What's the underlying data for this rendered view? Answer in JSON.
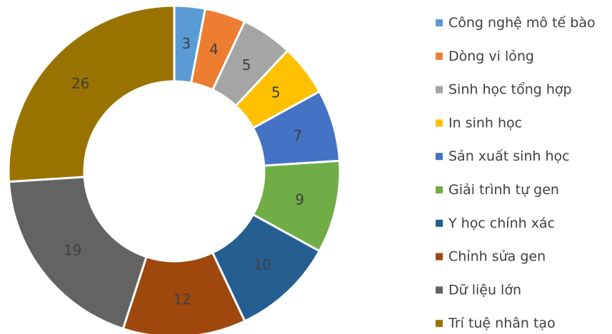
{
  "chart_data": {
    "type": "pie",
    "variant": "donut",
    "title": "",
    "legend_position": "right",
    "categories": [
      "Công nghệ mô tế bào",
      "Dòng vi lỏng",
      "Sinh học tổng hợp",
      "In sinh học",
      "Sản xuất sinh học",
      "Giải trình tự gen",
      "Y học chính xác",
      "Chỉnh sửa gen",
      "Dữ liệu lớn",
      "Trí tuệ nhân tạo"
    ],
    "values": [
      3,
      4,
      5,
      5,
      7,
      9,
      10,
      12,
      19,
      26
    ],
    "colors": [
      "#5B9BD5",
      "#ED7D31",
      "#A5A5A5",
      "#FFC000",
      "#4472C4",
      "#70AD47",
      "#255E91",
      "#9E480E",
      "#636363",
      "#997300"
    ],
    "data_labels": [
      "3",
      "4",
      "5",
      "5",
      "7",
      "9",
      "10",
      "12",
      "19",
      "26"
    ]
  }
}
